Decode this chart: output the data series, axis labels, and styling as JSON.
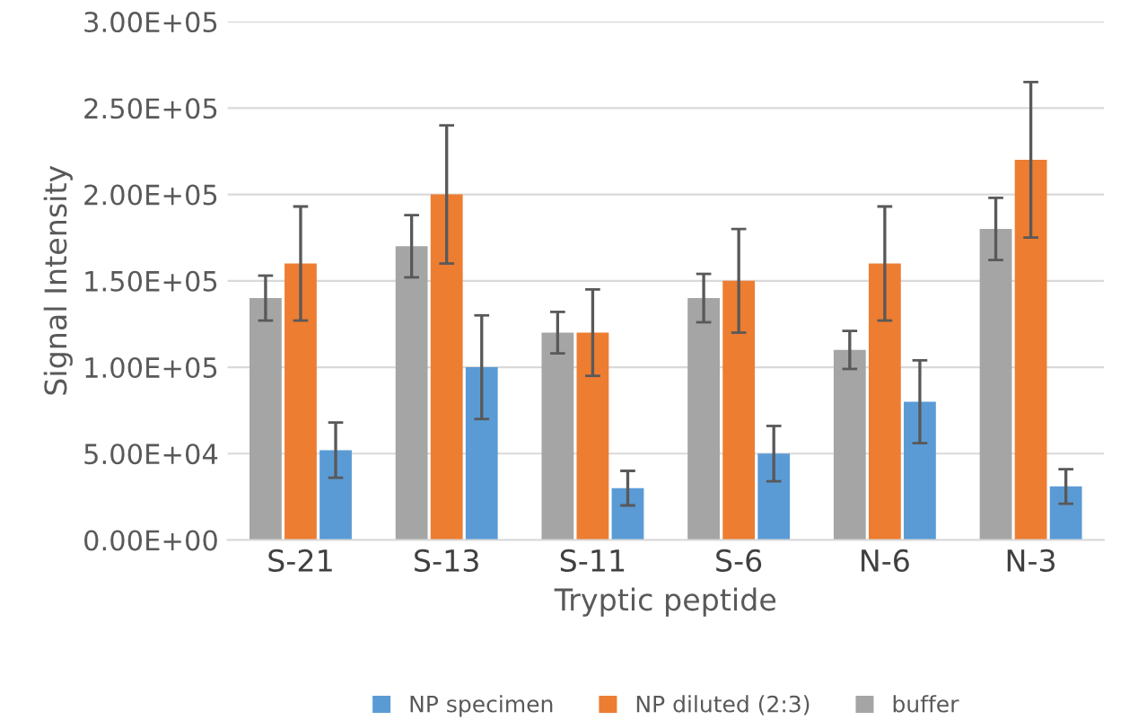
{
  "chart_data": {
    "type": "bar",
    "xlabel": "Tryptic peptide",
    "ylabel": "Signal Intensity",
    "categories": [
      "S-21",
      "S-13",
      "S-11",
      "S-6",
      "N-6",
      "N-3"
    ],
    "series": [
      {
        "name": "NP specimen",
        "color": "#5b9bd5",
        "values": [
          52000,
          100000,
          30000,
          50000,
          80000,
          31000
        ],
        "errors": [
          16000,
          30000,
          10000,
          16000,
          24000,
          10000
        ]
      },
      {
        "name": "NP diluted (2:3)",
        "color": "#ed7d31",
        "values": [
          160000,
          200000,
          120000,
          150000,
          160000,
          220000
        ],
        "errors": [
          33000,
          40000,
          25000,
          30000,
          33000,
          45000
        ]
      },
      {
        "name": "buffer",
        "color": "#a5a5a5",
        "values": [
          140000,
          170000,
          120000,
          140000,
          110000,
          180000
        ],
        "errors": [
          13000,
          18000,
          12000,
          14000,
          11000,
          18000
        ]
      }
    ],
    "ylim": [
      0,
      300000
    ],
    "yticks": [
      {
        "value": 0,
        "label": "0.00E+00"
      },
      {
        "value": 50000,
        "label": "5.00E+04"
      },
      {
        "value": 100000,
        "label": "1.00E+05"
      },
      {
        "value": 150000,
        "label": "1.50E+05"
      },
      {
        "value": 200000,
        "label": "2.00E+05"
      },
      {
        "value": 250000,
        "label": "2.50E+05"
      },
      {
        "value": 300000,
        "label": "3.00E+05"
      }
    ],
    "grid": "y",
    "legend": "bottom"
  }
}
